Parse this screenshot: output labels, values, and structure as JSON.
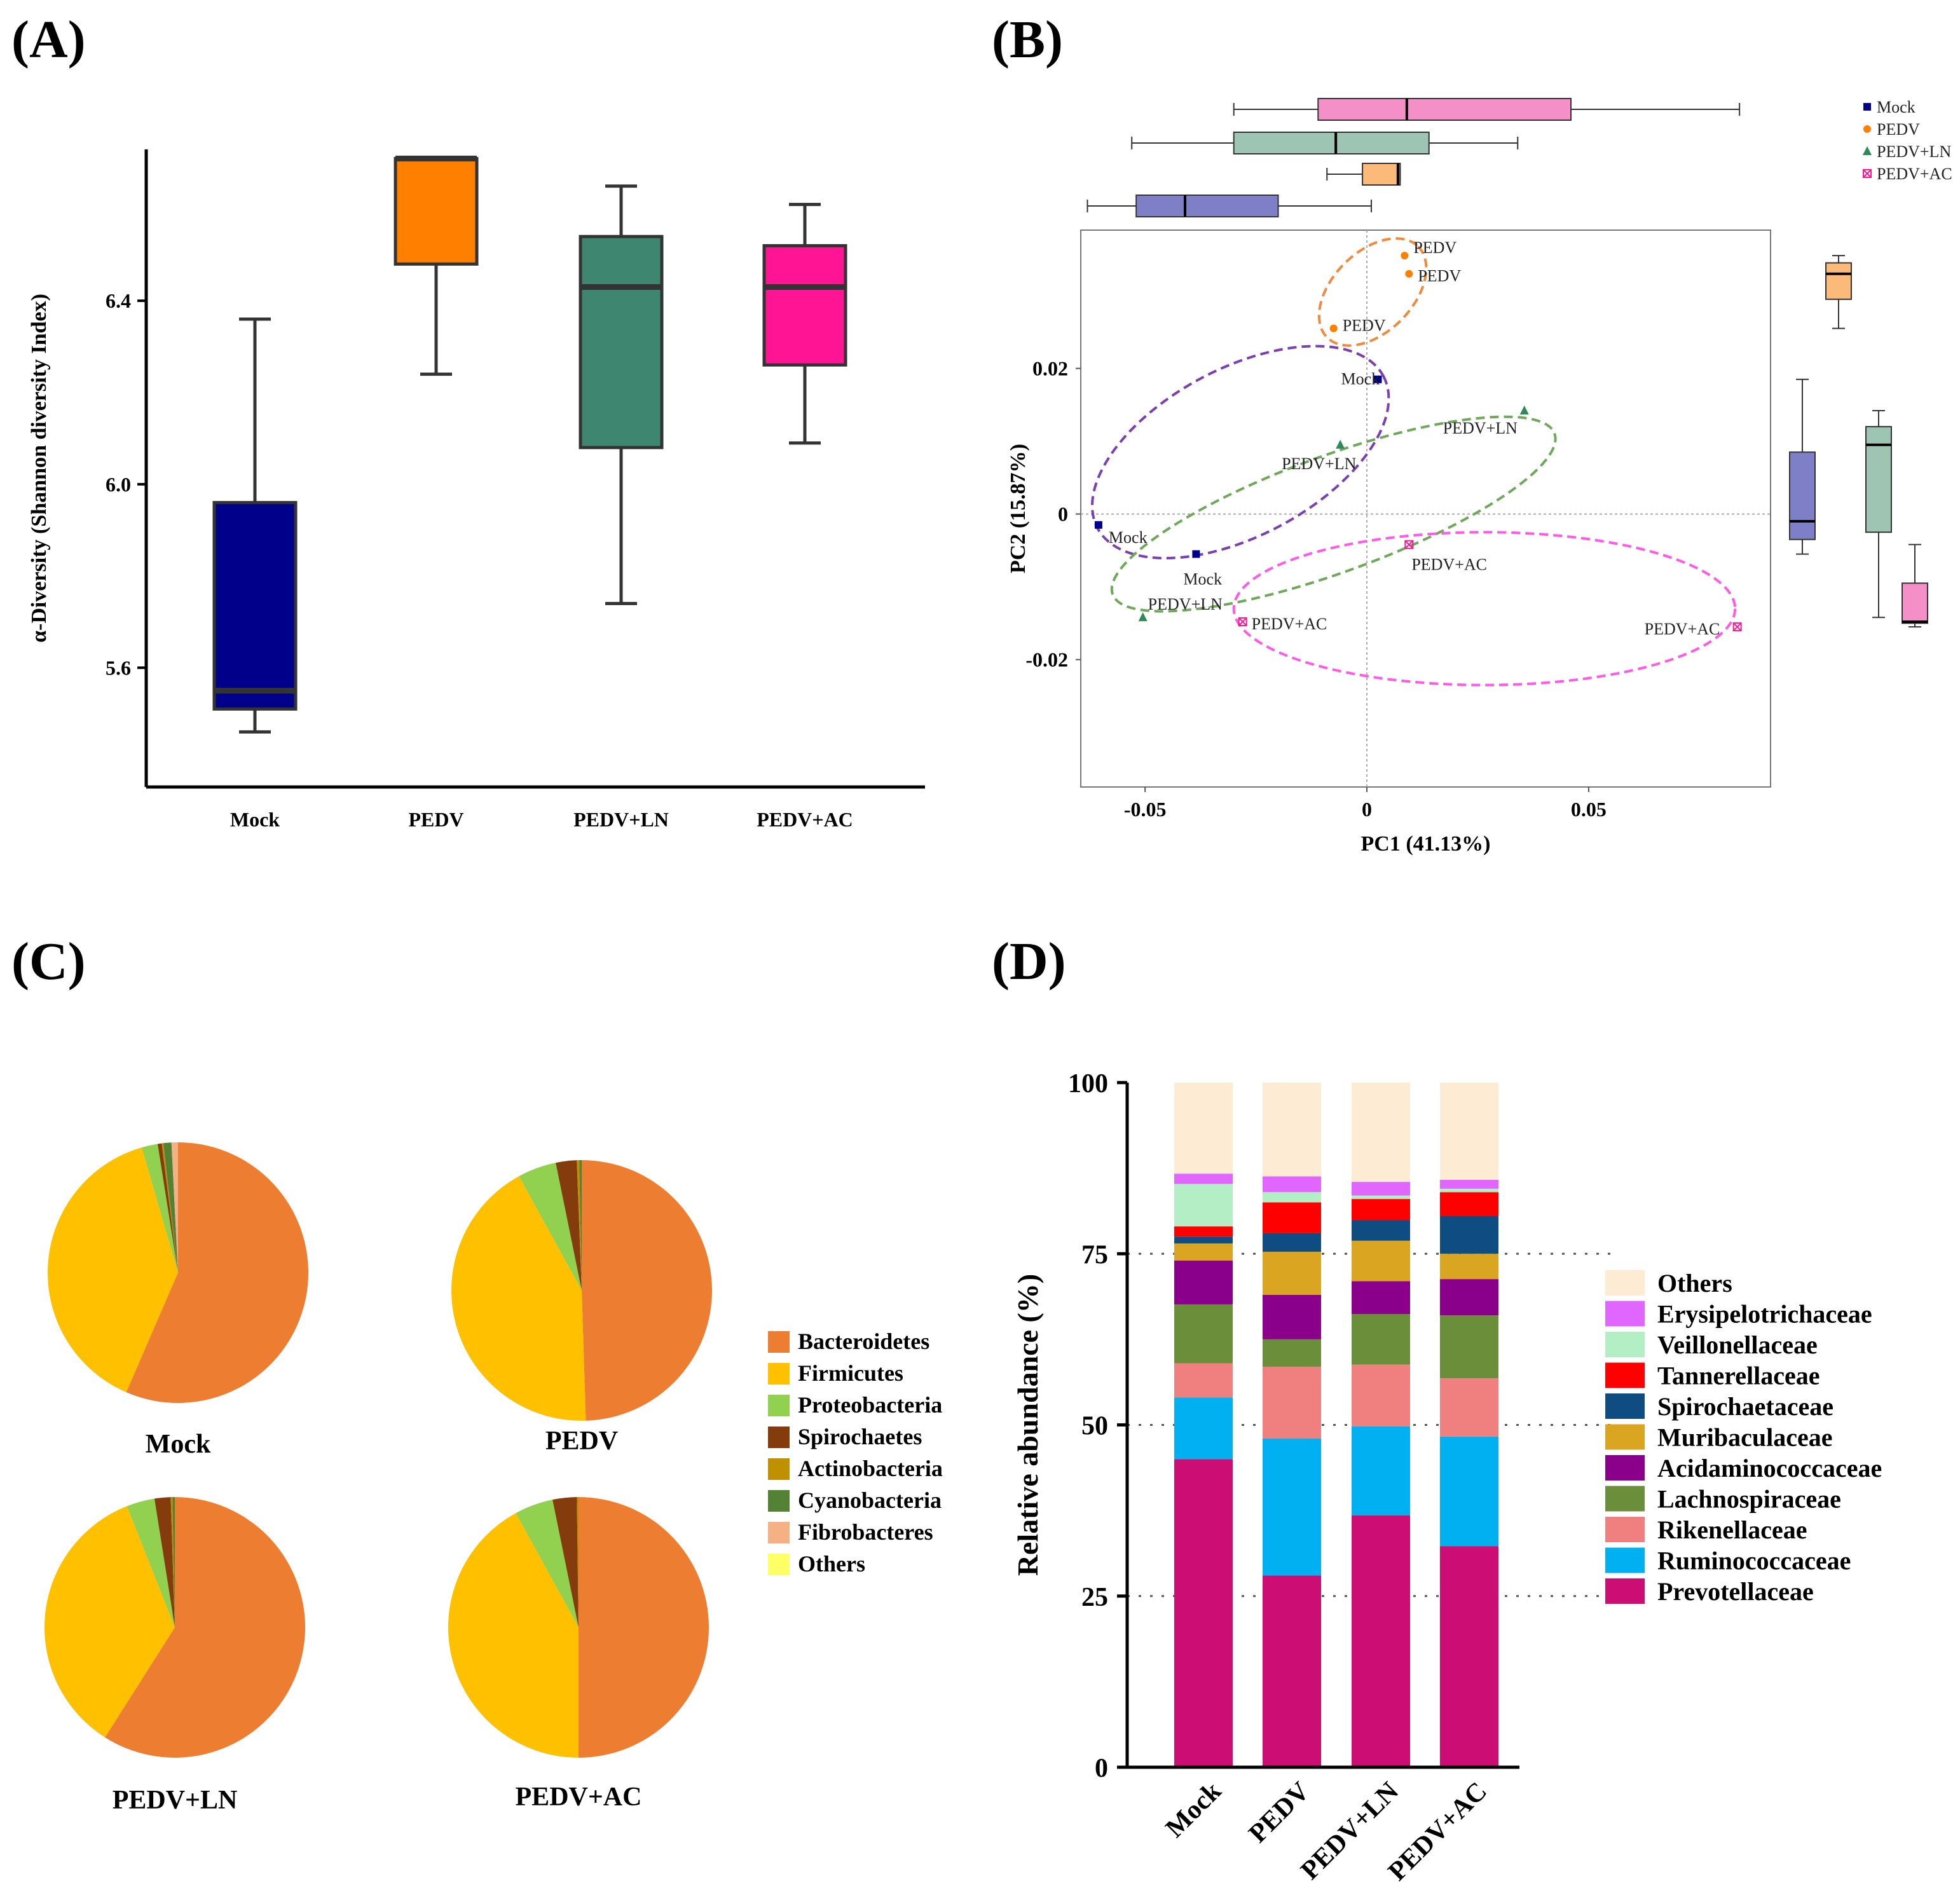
{
  "chart_data": [
    {
      "panel": "(A)",
      "type": "box",
      "ylabel": "α-Diversity (Shannon diversity Index)",
      "ylim": [
        5.34,
        6.73
      ],
      "yticks": [
        5.6,
        6.0,
        6.4
      ],
      "ytick_labels": [
        "5.6",
        "6.0",
        "6.4"
      ],
      "categories": [
        "Mock",
        "PEDV",
        "PEDV+LN",
        "PEDV+AC"
      ],
      "colors": [
        "#00008b",
        "#ff7f00",
        "#3f8670",
        "#ff1493"
      ],
      "boxes": [
        {
          "name": "Mock",
          "min": 5.46,
          "q1": 5.51,
          "median": 5.55,
          "q3": 5.96,
          "max": 6.36
        },
        {
          "name": "PEDV",
          "min": 6.24,
          "q1": 6.48,
          "median": 6.71,
          "q3": 6.71,
          "max": 6.71
        },
        {
          "name": "PEDV+LN",
          "min": 5.74,
          "q1": 6.08,
          "median": 6.43,
          "q3": 6.54,
          "max": 6.65
        },
        {
          "name": "PEDV+AC",
          "min": 6.09,
          "q1": 6.26,
          "median": 6.43,
          "q3": 6.52,
          "max": 6.61
        }
      ]
    },
    {
      "panel": "(B)",
      "type": "scatter",
      "xlabel": "PC1 (41.13%)",
      "ylabel": "PC2 (15.87%)",
      "xlim": [
        -0.0645,
        0.091
      ],
      "ylim": [
        -0.0375,
        0.039
      ],
      "xticks": [
        -0.05,
        0,
        0.05
      ],
      "xtick_labels": [
        "-0.05",
        "0",
        "0.05"
      ],
      "yticks": [
        -0.02,
        0,
        0.02
      ],
      "ytick_labels": [
        "-0.02",
        "0",
        "0.02"
      ],
      "legend": {
        "position": "top-right",
        "entries": [
          "Mock",
          "PEDV",
          "PEDV+LN",
          "PEDV+AC"
        ]
      },
      "groups": [
        {
          "name": "Mock",
          "color": "#00008b",
          "marker": "square",
          "points": [
            {
              "x": 0.0025,
              "y": 0.0185
            },
            {
              "x": -0.0605,
              "y": -0.0015
            },
            {
              "x": -0.0385,
              "y": -0.0055
            }
          ],
          "labels": [
            "Mock",
            "Mock",
            "Mock"
          ]
        },
        {
          "name": "PEDV",
          "color": "#ff7f00",
          "marker": "circle",
          "points": [
            {
              "x": 0.0085,
              "y": 0.0355
            },
            {
              "x": 0.0095,
              "y": 0.033
            },
            {
              "x": -0.0075,
              "y": 0.0255
            }
          ],
          "labels": [
            "PEDV",
            "PEDV",
            "PEDV"
          ]
        },
        {
          "name": "PEDV+LN",
          "color": "#2e8b57",
          "marker": "triangle",
          "points": [
            {
              "x": 0.0355,
              "y": 0.0142
            },
            {
              "x": -0.006,
              "y": 0.0095
            },
            {
              "x": -0.0505,
              "y": -0.0142
            }
          ],
          "labels": [
            "PEDV+LN",
            "PEDV+LN",
            "PEDV+LN"
          ]
        },
        {
          "name": "PEDV+AC",
          "color": "#ff1493",
          "marker": "square-x",
          "points": [
            {
              "x": 0.0095,
              "y": -0.0042
            },
            {
              "x": -0.028,
              "y": -0.0148
            },
            {
              "x": 0.0835,
              "y": -0.0155
            }
          ],
          "labels": [
            "PEDV+AC",
            "PEDV+AC",
            "PEDV+AC"
          ]
        }
      ],
      "ellipses": [
        {
          "name": "PEDV",
          "color": "#f08a3c",
          "cx": 0.0013,
          "cy": 0.0305,
          "rx": 0.0145,
          "ry": 0.0055,
          "angle": 45
        },
        {
          "name": "Mock",
          "color": "#7b3fb0",
          "cx": -0.0285,
          "cy": 0.0085,
          "rx": 0.0365,
          "ry": 0.0115,
          "angle": 28
        },
        {
          "name": "PEDV+LN",
          "color": "#6fa85a",
          "cx": -0.0075,
          "cy": 0.0,
          "rx": 0.053,
          "ry": 0.008,
          "angle": 20
        },
        {
          "name": "PEDV+AC",
          "color": "#ff59e8",
          "cx": 0.0265,
          "cy": -0.013,
          "rx": 0.0565,
          "ry": 0.0105,
          "angle": 0
        }
      ],
      "marginal_pc1_boxes": [
        {
          "name": "PEDV+AC",
          "color": "#f48fc8",
          "min": -0.03,
          "q1": -0.011,
          "median": 0.009,
          "q3": 0.046,
          "max": 0.084
        },
        {
          "name": "PEDV+LN",
          "color": "#9ec5b4",
          "min": -0.053,
          "q1": -0.03,
          "median": -0.007,
          "q3": 0.014,
          "max": 0.034
        },
        {
          "name": "PEDV",
          "color": "#fbb97a",
          "min": -0.009,
          "q1": -0.001,
          "median": 0.007,
          "q3": 0.0075,
          "max": 0.0075
        },
        {
          "name": "Mock",
          "color": "#7f7fc8",
          "min": -0.063,
          "q1": -0.052,
          "median": -0.041,
          "q3": -0.02,
          "max": 0.001
        }
      ],
      "marginal_pc2_boxes": [
        {
          "name": "Mock",
          "color": "#7f7fc8",
          "min": -0.0055,
          "q1": -0.0035,
          "median": -0.001,
          "q3": 0.0085,
          "max": 0.0185
        },
        {
          "name": "PEDV",
          "color": "#fbb97a",
          "min": 0.0255,
          "q1": 0.0295,
          "median": 0.033,
          "q3": 0.0345,
          "max": 0.0355
        },
        {
          "name": "PEDV+LN",
          "color": "#9ec5b4",
          "min": -0.0142,
          "q1": -0.0025,
          "median": 0.0095,
          "q3": 0.012,
          "max": 0.0142
        },
        {
          "name": "PEDV+AC",
          "color": "#f48fc8",
          "min": -0.0155,
          "q1": -0.015,
          "median": -0.0148,
          "q3": -0.0095,
          "max": -0.0042
        }
      ]
    },
    {
      "panel": "(C)",
      "type": "pie",
      "legend": [
        "Bacteroidetes",
        "Firmicutes",
        "Proteobacteria",
        "Spirochaetes",
        "Actinobacteria",
        "Cyanobacteria",
        "Fibrobacteres",
        "Others"
      ],
      "colors": [
        "#ed7d31",
        "#ffc000",
        "#92d050",
        "#843c0c",
        "#bf9000",
        "#548235",
        "#f4b183",
        "#ffff66"
      ],
      "pies": [
        {
          "name": "Mock",
          "values": [
            56.5,
            39.0,
            2.0,
            0.5,
            0.2,
            1.0,
            0.8,
            0
          ]
        },
        {
          "name": "PEDV",
          "values": [
            49.5,
            42.5,
            4.8,
            2.6,
            0.3,
            0.3,
            0,
            0
          ]
        },
        {
          "name": "PEDV+LN",
          "values": [
            59.0,
            35.0,
            3.5,
            2.0,
            0.2,
            0.3,
            0,
            0
          ]
        },
        {
          "name": "PEDV+AC",
          "values": [
            50.0,
            42.0,
            4.8,
            3.0,
            0.2,
            0,
            0,
            0
          ]
        }
      ]
    },
    {
      "panel": "(D)",
      "type": "stacked-bar",
      "ylabel": "Relative abundance (%)",
      "ylim": [
        0,
        100
      ],
      "yticks": [
        0,
        25,
        50,
        75,
        100
      ],
      "ytick_labels": [
        "0",
        "25",
        "50",
        "75",
        "100"
      ],
      "categories": [
        "Mock",
        "PEDV",
        "PEDV+LN",
        "PEDV+AC"
      ],
      "series": [
        {
          "name": "Prevotellaceae",
          "color": "#cc0e74",
          "values": [
            45.0,
            28.0,
            36.8,
            32.3
          ]
        },
        {
          "name": "Ruminococcaceae",
          "color": "#00b0f0",
          "values": [
            9.0,
            20.0,
            13.0,
            16.0
          ]
        },
        {
          "name": "Rikenellaceae",
          "color": "#f08080",
          "values": [
            5.0,
            10.5,
            9.0,
            8.5
          ]
        },
        {
          "name": "Lachnospiraceae",
          "color": "#6b8e3a",
          "values": [
            8.6,
            4.0,
            7.4,
            9.2
          ]
        },
        {
          "name": "Acidaminococcaceae",
          "color": "#8b008b",
          "values": [
            6.4,
            6.5,
            4.8,
            5.3
          ]
        },
        {
          "name": "Muribaculaceae",
          "color": "#daa520",
          "values": [
            2.5,
            6.3,
            5.9,
            3.7
          ]
        },
        {
          "name": "Spirochaetaceae",
          "color": "#0f4c81",
          "values": [
            1.0,
            2.7,
            3.0,
            5.5
          ]
        },
        {
          "name": "Tannerellaceae",
          "color": "#ff0000",
          "values": [
            1.5,
            4.5,
            3.1,
            3.5
          ]
        },
        {
          "name": "Veillonellaceae",
          "color": "#b4eec4",
          "values": [
            6.2,
            1.5,
            0.5,
            0.5
          ]
        },
        {
          "name": "Erysipelotrichaceae",
          "color": "#e066ff",
          "values": [
            1.5,
            2.3,
            2.0,
            1.3
          ]
        },
        {
          "name": "Others",
          "color": "#fdebd3",
          "values": [
            13.3,
            13.7,
            14.5,
            14.2
          ]
        }
      ],
      "legend_order": [
        "Others",
        "Erysipelotrichaceae",
        "Veillonellaceae",
        "Tannerellaceae",
        "Spirochaetaceae",
        "Muribaculaceae",
        "Acidaminococcaceae",
        "Lachnospiraceae",
        "Rikenellaceae",
        "Ruminococcaceae",
        "Prevotellaceae"
      ]
    }
  ]
}
